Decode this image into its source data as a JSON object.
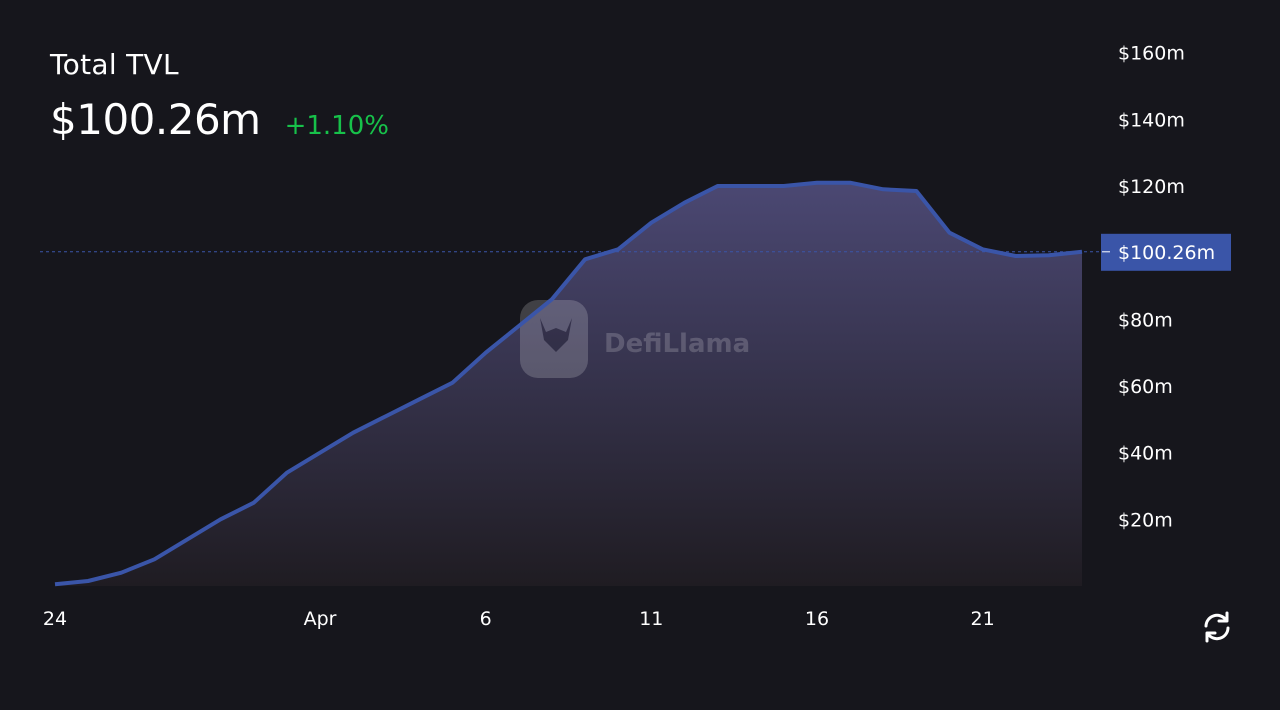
{
  "header": {
    "title": "Total TVL",
    "value": "$100.26m",
    "change": "+1.10%"
  },
  "colors": {
    "background": "#16161c",
    "line": "#3a55a8",
    "area_top": "#4b4873",
    "area_bottom": "#1f1c22",
    "positive": "#17c14a",
    "axis_text": "#ffffff",
    "price_label_bg": "#3a55a8",
    "guide_line": "#3a55a8"
  },
  "chart_data": {
    "type": "area",
    "title": "",
    "xlabel": "",
    "ylabel": "",
    "x_tick_labels": [
      "24",
      "Apr",
      "6",
      "11",
      "16",
      "21"
    ],
    "x_tick_positions": [
      "2024-03-24",
      "2024-04-01",
      "2024-04-06",
      "2024-04-11",
      "2024-04-16",
      "2024-04-21"
    ],
    "y_tick_labels": [
      "$20m",
      "$40m",
      "$60m",
      "$80m",
      "$100m",
      "$120m",
      "$140m",
      "$160m"
    ],
    "y_ticks": [
      20,
      40,
      60,
      80,
      100,
      120,
      140,
      160
    ],
    "ylim": [
      0,
      165
    ],
    "y_unit": "$m",
    "current_value": 100.26,
    "current_label": "$100.26m",
    "grid": false,
    "series": [
      {
        "x": [
          "2024-03-24",
          "2024-03-25",
          "2024-03-26",
          "2024-03-27",
          "2024-03-28",
          "2024-03-29",
          "2024-03-30",
          "2024-03-31",
          "2024-04-01",
          "2024-04-02",
          "2024-04-03",
          "2024-04-04",
          "2024-04-05",
          "2024-04-06",
          "2024-04-07",
          "2024-04-08",
          "2024-04-09",
          "2024-04-10",
          "2024-04-11",
          "2024-04-12",
          "2024-04-13",
          "2024-04-14",
          "2024-04-15",
          "2024-04-16",
          "2024-04-17",
          "2024-04-18",
          "2024-04-19",
          "2024-04-20",
          "2024-04-21",
          "2024-04-22",
          "2024-04-23",
          "2024-04-24"
        ],
        "values": [
          0.5,
          1.5,
          4,
          8,
          14,
          20,
          25,
          34,
          40,
          46,
          51,
          56,
          61,
          70,
          78,
          86,
          98,
          101,
          109,
          115,
          120,
          120,
          120,
          121,
          121,
          119,
          118.5,
          106,
          101,
          99,
          99.2,
          100.26
        ]
      }
    ]
  },
  "watermark": {
    "text": "DefiLlama"
  },
  "controls": {
    "refresh_icon": "refresh-icon"
  }
}
